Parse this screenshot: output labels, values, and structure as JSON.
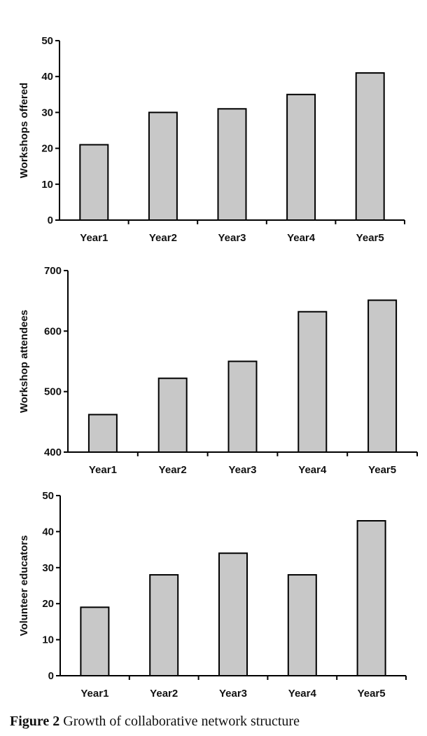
{
  "chart_data": [
    {
      "type": "bar",
      "categories": [
        "Year1",
        "Year2",
        "Year3",
        "Year4",
        "Year5"
      ],
      "values": [
        21,
        30,
        31,
        35,
        41
      ],
      "ylabel": "Workshops offered",
      "ylim": [
        0,
        50
      ],
      "yticks": [
        0,
        10,
        20,
        30,
        40,
        50
      ]
    },
    {
      "type": "bar",
      "categories": [
        "Year1",
        "Year2",
        "Year3",
        "Year4",
        "Year5"
      ],
      "values": [
        462,
        522,
        550,
        632,
        651
      ],
      "ylabel": "Workshop attendees",
      "ylim": [
        400,
        700
      ],
      "yticks": [
        400,
        500,
        600,
        700
      ]
    },
    {
      "type": "bar",
      "categories": [
        "Year1",
        "Year2",
        "Year3",
        "Year4",
        "Year5"
      ],
      "values": [
        19,
        28,
        34,
        28,
        43
      ],
      "ylabel": "Volunteer educators",
      "ylim": [
        0,
        50
      ],
      "yticks": [
        0,
        10,
        20,
        30,
        40,
        50
      ]
    }
  ],
  "caption": {
    "figure_label": "Figure 2",
    "text": "Growth of collaborative network structure"
  }
}
